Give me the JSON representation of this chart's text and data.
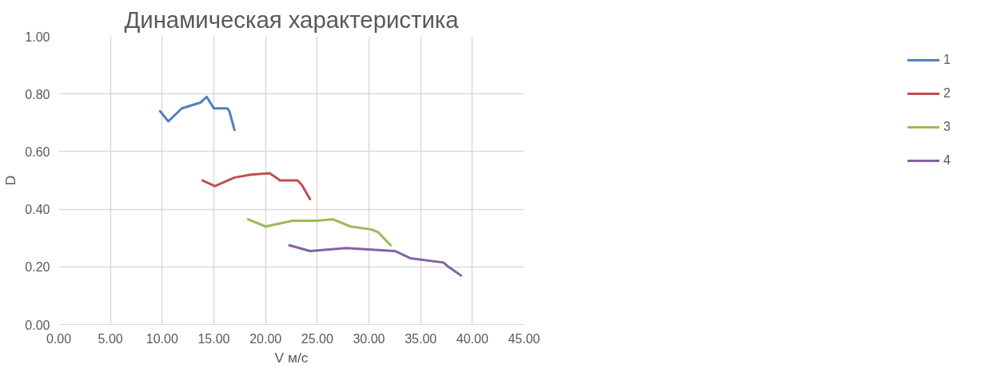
{
  "chart_data": {
    "type": "line",
    "title": "Динамическая характеристика",
    "xlabel": "V м/с",
    "ylabel": "D",
    "xlim": [
      0,
      45
    ],
    "ylim": [
      0,
      1
    ],
    "xticks": [
      {
        "value": 0,
        "label": "0.00"
      },
      {
        "value": 5,
        "label": "5.00"
      },
      {
        "value": 10,
        "label": "10.00"
      },
      {
        "value": 15,
        "label": "15.00"
      },
      {
        "value": 20,
        "label": "20.00"
      },
      {
        "value": 25,
        "label": "25.00"
      },
      {
        "value": 30,
        "label": "30.00"
      },
      {
        "value": 35,
        "label": "35.00"
      },
      {
        "value": 40,
        "label": "40.00"
      },
      {
        "value": 45,
        "label": "45.00"
      }
    ],
    "yticks": [
      {
        "value": 0,
        "label": "0.00"
      },
      {
        "value": 0.2,
        "label": "0.20"
      },
      {
        "value": 0.4,
        "label": "0.40"
      },
      {
        "value": 0.6,
        "label": "0.60"
      },
      {
        "value": 0.8,
        "label": "0.80"
      },
      {
        "value": 1,
        "label": "1.00"
      }
    ],
    "grid": true,
    "legend": "right",
    "marker": "none",
    "line_style": "solid",
    "series": [
      {
        "name": "1",
        "color": "#4f81bd",
        "x": [
          9.8,
          10.6,
          11.9,
          13.7,
          14.3,
          15.0,
          16.3,
          16.5,
          17.0
        ],
        "values": [
          0.74,
          0.705,
          0.75,
          0.77,
          0.79,
          0.75,
          0.75,
          0.74,
          0.675
        ]
      },
      {
        "name": "2",
        "color": "#c0504d",
        "x": [
          13.9,
          15.1,
          17.0,
          18.6,
          20.4,
          21.4,
          23.1,
          23.5,
          24.3
        ],
        "values": [
          0.5,
          0.48,
          0.51,
          0.52,
          0.525,
          0.5,
          0.5,
          0.485,
          0.435
        ]
      },
      {
        "name": "3",
        "color": "#9bbb59",
        "x": [
          18.3,
          20.0,
          22.6,
          24.9,
          26.5,
          28.2,
          30.2,
          30.9,
          32.1
        ],
        "values": [
          0.365,
          0.34,
          0.36,
          0.36,
          0.365,
          0.34,
          0.33,
          0.32,
          0.275
        ]
      },
      {
        "name": "4",
        "color": "#8064a2",
        "x": [
          22.3,
          24.3,
          27.8,
          32.5,
          34.0,
          37.2,
          37.7,
          38.9
        ],
        "values": [
          0.275,
          0.255,
          0.265,
          0.255,
          0.23,
          0.215,
          0.2,
          0.17
        ]
      }
    ]
  }
}
